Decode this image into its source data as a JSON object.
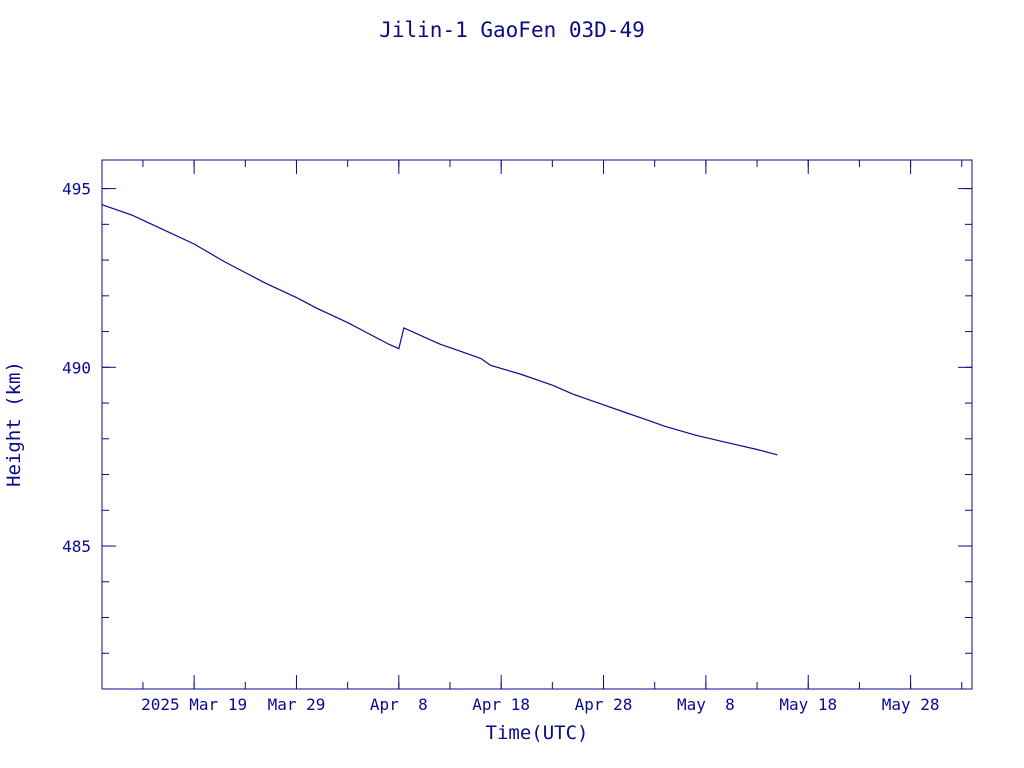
{
  "chart_data": {
    "type": "line",
    "title": "Jilin-1 GaoFen 03D-49",
    "xlabel": "Time(UTC)",
    "ylabel": "Height (km)",
    "xlim": [
      "2025-03-10",
      "2025-06-03"
    ],
    "ylim": [
      481.0,
      495.8
    ],
    "x_ticks": [
      {
        "date": "2025-03-19",
        "label": "2025 Mar 19"
      },
      {
        "date": "2025-03-29",
        "label": "Mar 29"
      },
      {
        "date": "2025-04-08",
        "label": "Apr  8"
      },
      {
        "date": "2025-04-18",
        "label": "Apr 18"
      },
      {
        "date": "2025-04-28",
        "label": "Apr 28"
      },
      {
        "date": "2025-05-08",
        "label": "May  8"
      },
      {
        "date": "2025-05-18",
        "label": "May 18"
      },
      {
        "date": "2025-05-28",
        "label": "May 28"
      }
    ],
    "y_ticks": [
      {
        "value": 485,
        "label": "485"
      },
      {
        "value": 490,
        "label": "490"
      },
      {
        "value": 495,
        "label": "495"
      }
    ],
    "y_minor_step": 1,
    "x_minor_step_days": 5,
    "grid": false,
    "legend": "none",
    "series": [
      {
        "color": "#0a0a8c",
        "points": [
          {
            "x": "2025-03-10",
            "y": 494.55
          },
          {
            "x": "2025-03-13",
            "y": 494.25
          },
          {
            "x": "2025-03-16",
            "y": 493.85
          },
          {
            "x": "2025-03-19",
            "y": 493.45
          },
          {
            "x": "2025-03-22",
            "y": 492.95
          },
          {
            "x": "2025-03-24",
            "y": 492.65
          },
          {
            "x": "2025-03-26",
            "y": 492.35
          },
          {
            "x": "2025-03-29",
            "y": 491.95
          },
          {
            "x": "2025-03-31",
            "y": 491.65
          },
          {
            "x": "2025-04-03",
            "y": 491.25
          },
          {
            "x": "2025-04-05",
            "y": 490.95
          },
          {
            "x": "2025-04-07",
            "y": 490.65
          },
          {
            "x": "2025-04-08",
            "y": 490.52
          },
          {
            "x": "2025-04-08T12:00",
            "y": 491.1
          },
          {
            "x": "2025-04-12",
            "y": 490.65
          },
          {
            "x": "2025-04-14",
            "y": 490.45
          },
          {
            "x": "2025-04-16",
            "y": 490.25
          },
          {
            "x": "2025-04-17",
            "y": 490.05
          },
          {
            "x": "2025-04-20",
            "y": 489.8
          },
          {
            "x": "2025-04-23",
            "y": 489.5
          },
          {
            "x": "2025-04-25",
            "y": 489.25
          },
          {
            "x": "2025-04-28",
            "y": 488.95
          },
          {
            "x": "2025-04-30",
            "y": 488.75
          },
          {
            "x": "2025-05-02",
            "y": 488.55
          },
          {
            "x": "2025-05-04",
            "y": 488.35
          },
          {
            "x": "2025-05-07",
            "y": 488.1
          },
          {
            "x": "2025-05-10",
            "y": 487.9
          },
          {
            "x": "2025-05-13",
            "y": 487.7
          },
          {
            "x": "2025-05-15",
            "y": 487.55
          }
        ]
      }
    ]
  }
}
